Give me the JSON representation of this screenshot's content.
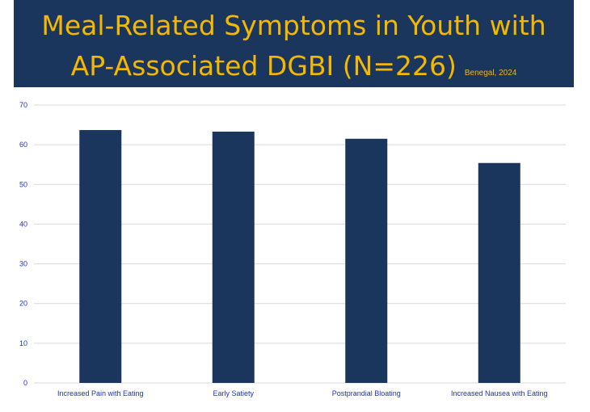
{
  "chart_data": {
    "type": "bar",
    "title_line1": "Meal-Related Symptoms in Youth with",
    "title_line2": "AP-Associated DGBI (N=226)",
    "source": "Benegal, 2024",
    "categories": [
      "Increased Pain with Eating",
      "Early Satiety",
      "Postprandial Bloating",
      "Increased Nausea with Eating"
    ],
    "values": [
      63.7,
      63.3,
      61.5,
      55.4
    ],
    "ylim": [
      0,
      70
    ],
    "yticks": [
      0,
      10,
      20,
      30,
      40,
      50,
      60,
      70
    ],
    "grid": true,
    "xlabel": "",
    "ylabel": "",
    "bar_color": "#1b365d",
    "title_color": "#f5b800"
  }
}
